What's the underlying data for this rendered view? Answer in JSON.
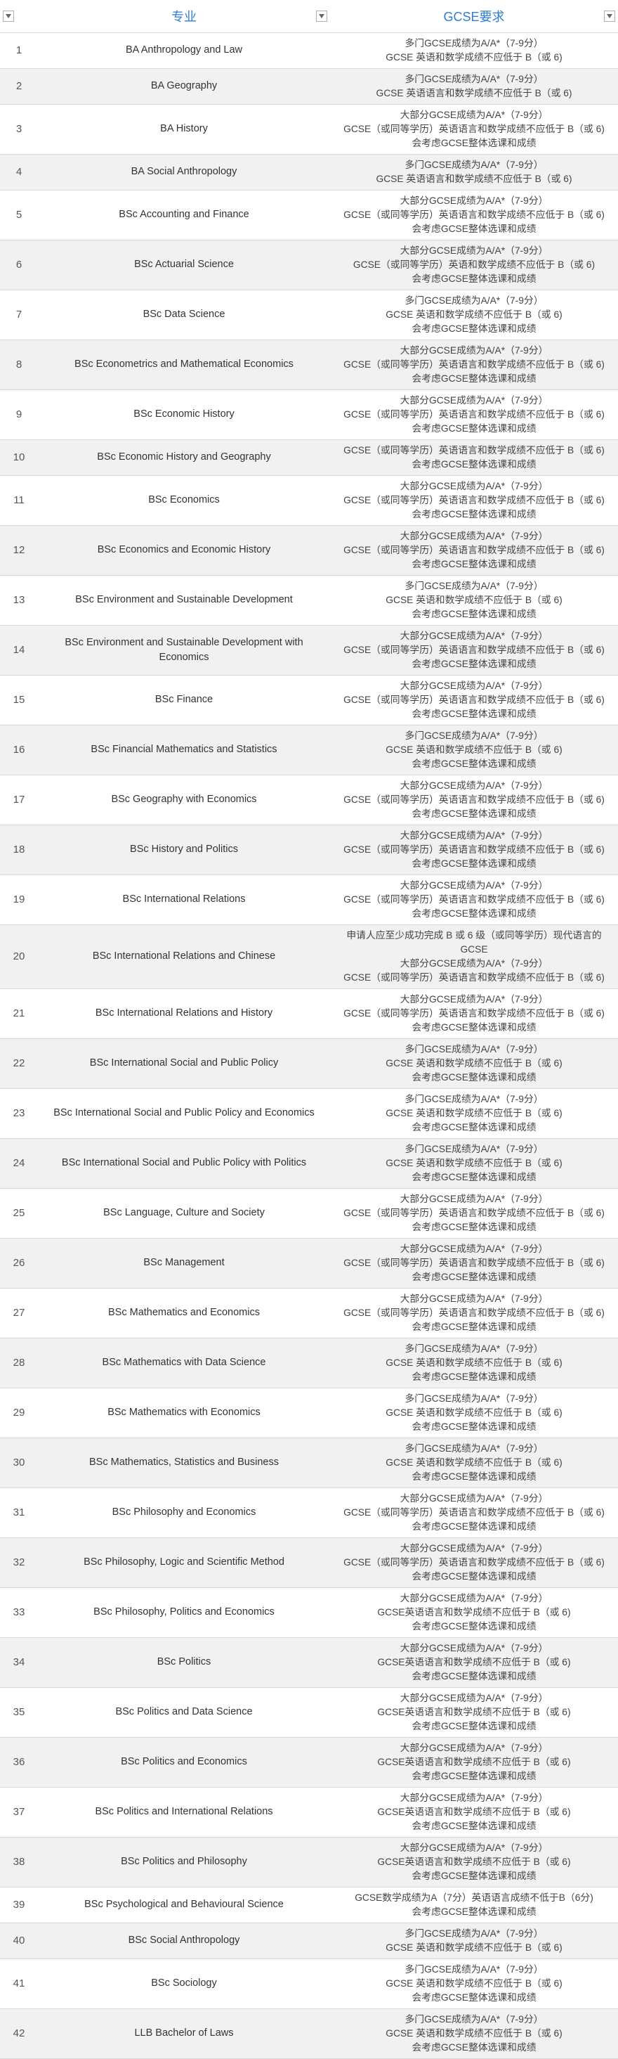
{
  "headers": {
    "num": "",
    "major": "专业",
    "req": "GCSE要求"
  },
  "colors": {
    "header_text": "#2d7dd2",
    "row_odd_bg": "#ffffff",
    "row_even_bg": "#f1f1f1",
    "text": "#444444",
    "border": "#d8d8d8"
  },
  "rows": [
    {
      "n": "1",
      "major": "BA Anthropology and Law",
      "req": [
        "多门GCSE成绩为A/A*（7-9分）",
        "GCSE 英语和数学成绩不应低于 B（或 6)"
      ]
    },
    {
      "n": "2",
      "major": "BA Geography",
      "req": [
        "多门GCSE成绩为A/A*（7-9分）",
        "GCSE 英语语言和数学成绩不应低于 B（或 6)"
      ]
    },
    {
      "n": "3",
      "major": "BA History",
      "req": [
        "大部分GCSE成绩为A/A*（7-9分）",
        "GCSE（或同等学历）英语语言和数学成绩不应低于 B（或 6)",
        "会考虑GCSE整体选课和成绩"
      ]
    },
    {
      "n": "4",
      "major": "BA Social Anthropology",
      "req": [
        "多门GCSE成绩为A/A*（7-9分）",
        "GCSE 英语语言和数学成绩不应低于 B（或 6)"
      ]
    },
    {
      "n": "5",
      "major": "BSc Accounting and Finance",
      "req": [
        "大部分GCSE成绩为A/A*（7-9分）",
        "GCSE（或同等学历）英语语言和数学成绩不应低于 B（或 6)",
        "会考虑GCSE整体选课和成绩"
      ]
    },
    {
      "n": "6",
      "major": "BSc Actuarial Science",
      "req": [
        "大部分GCSE成绩为A/A*（7-9分）",
        "GCSE（或同等学历）英语和数学成绩不应低于 B（或 6)",
        "会考虑GCSE整体选课和成绩"
      ]
    },
    {
      "n": "7",
      "major": "BSc Data Science",
      "req": [
        "多门GCSE成绩为A/A*（7-9分）",
        "GCSE 英语和数学成绩不应低于 B（或 6)",
        "会考虑GCSE整体选课和成绩"
      ]
    },
    {
      "n": "8",
      "major": "BSc Econometrics and Mathematical Economics",
      "req": [
        "大部分GCSE成绩为A/A*（7-9分）",
        "GCSE（或同等学历）英语语言和数学成绩不应低于 B（或 6)",
        "会考虑GCSE整体选课和成绩"
      ]
    },
    {
      "n": "9",
      "major": "BSc Economic History",
      "req": [
        "大部分GCSE成绩为A/A*（7-9分）",
        "GCSE（或同等学历）英语语言和数学成绩不应低于 B（或 6)",
        "会考虑GCSE整体选课和成绩"
      ]
    },
    {
      "n": "10",
      "major": "BSc Economic History and Geography",
      "req": [
        "GCSE（或同等学历）英语语言和数学成绩不应低于 B（或 6)",
        "会考虑GCSE整体选课和成绩"
      ]
    },
    {
      "n": "11",
      "major": "BSc Economics",
      "req": [
        "大部分GCSE成绩为A/A*（7-9分）",
        "GCSE（或同等学历）英语语言和数学成绩不应低于 B（或 6)",
        "会考虑GCSE整体选课和成绩"
      ]
    },
    {
      "n": "12",
      "major": "BSc Economics and Economic History",
      "req": [
        "大部分GCSE成绩为A/A*（7-9分）",
        "GCSE（或同等学历）英语语言和数学成绩不应低于 B（或 6)",
        "会考虑GCSE整体选课和成绩"
      ]
    },
    {
      "n": "13",
      "major": "BSc Environment and Sustainable Development",
      "req": [
        "多门GCSE成绩为A/A*（7-9分）",
        "GCSE 英语和数学成绩不应低于 B（或 6)",
        "会考虑GCSE整体选课和成绩"
      ]
    },
    {
      "n": "14",
      "major": "BSc Environment and Sustainable Development with Economics",
      "req": [
        "大部分GCSE成绩为A/A*（7-9分）",
        "GCSE（或同等学历）英语语言和数学成绩不应低于 B（或 6)",
        "会考虑GCSE整体选课和成绩"
      ]
    },
    {
      "n": "15",
      "major": "BSc Finance",
      "req": [
        "大部分GCSE成绩为A/A*（7-9分）",
        "GCSE（或同等学历）英语语言和数学成绩不应低于 B（或 6)",
        "会考虑GCSE整体选课和成绩"
      ]
    },
    {
      "n": "16",
      "major": "BSc Financial Mathematics and Statistics",
      "req": [
        "多门GCSE成绩为A/A*（7-9分）",
        "GCSE 英语和数学成绩不应低于 B（或 6)",
        "会考虑GCSE整体选课和成绩"
      ]
    },
    {
      "n": "17",
      "major": "BSc Geography with Economics",
      "req": [
        "大部分GCSE成绩为A/A*（7-9分）",
        "GCSE（或同等学历）英语语言和数学成绩不应低于 B（或 6)",
        "会考虑GCSE整体选课和成绩"
      ]
    },
    {
      "n": "18",
      "major": "BSc History and Politics",
      "req": [
        "大部分GCSE成绩为A/A*（7-9分）",
        "GCSE（或同等学历）英语语言和数学成绩不应低于 B（或 6)",
        "会考虑GCSE整体选课和成绩"
      ]
    },
    {
      "n": "19",
      "major": "BSc International Relations",
      "req": [
        "大部分GCSE成绩为A/A*（7-9分）",
        "GCSE（或同等学历）英语语言和数学成绩不应低于 B（或 6)",
        "会考虑GCSE整体选课和成绩"
      ]
    },
    {
      "n": "20",
      "major": "BSc International Relations and Chinese",
      "req": [
        "申请人应至少成功完成 B 或 6 级（或同等学历）现代语言的GCSE",
        "大部分GCSE成绩为A/A*（7-9分）",
        "GCSE（或同等学历）英语语言和数学成绩不应低于 B（或 6)"
      ]
    },
    {
      "n": "21",
      "major": "BSc International Relations and History",
      "req": [
        "大部分GCSE成绩为A/A*（7-9分）",
        "GCSE（或同等学历）英语语言和数学成绩不应低于 B（或 6)",
        "会考虑GCSE整体选课和成绩"
      ]
    },
    {
      "n": "22",
      "major": "BSc International Social and Public Policy",
      "req": [
        "多门GCSE成绩为A/A*（7-9分）",
        "GCSE 英语和数学成绩不应低于 B（或 6)",
        "会考虑GCSE整体选课和成绩"
      ]
    },
    {
      "n": "23",
      "major": "BSc International Social and Public Policy and Economics",
      "req": [
        "多门GCSE成绩为A/A*（7-9分）",
        "GCSE 英语和数学成绩不应低于 B（或 6)",
        "会考虑GCSE整体选课和成绩"
      ]
    },
    {
      "n": "24",
      "major": "BSc International Social and Public Policy with Politics",
      "req": [
        "多门GCSE成绩为A/A*（7-9分）",
        "GCSE 英语和数学成绩不应低于 B（或 6)",
        "会考虑GCSE整体选课和成绩"
      ]
    },
    {
      "n": "25",
      "major": "BSc Language, Culture and Society",
      "req": [
        "大部分GCSE成绩为A/A*（7-9分）",
        "GCSE（或同等学历）英语语言和数学成绩不应低于 B（或 6)",
        "会考虑GCSE整体选课和成绩"
      ]
    },
    {
      "n": "26",
      "major": "BSc Management",
      "req": [
        "大部分GCSE成绩为A/A*（7-9分）",
        "GCSE（或同等学历）英语语言和数学成绩不应低于 B（或 6)",
        "会考虑GCSE整体选课和成绩"
      ]
    },
    {
      "n": "27",
      "major": "BSc Mathematics and Economics",
      "req": [
        "大部分GCSE成绩为A/A*（7-9分）",
        "GCSE（或同等学历）英语语言和数学成绩不应低于 B（或 6)",
        "会考虑GCSE整体选课和成绩"
      ]
    },
    {
      "n": "28",
      "major": "BSc Mathematics with Data Science",
      "req": [
        "多门GCSE成绩为A/A*（7-9分）",
        "GCSE 英语和数学成绩不应低于 B（或 6)",
        "会考虑GCSE整体选课和成绩"
      ]
    },
    {
      "n": "29",
      "major": "BSc Mathematics with Economics",
      "req": [
        "多门GCSE成绩为A/A*（7-9分）",
        "GCSE 英语和数学成绩不应低于 B（或 6)",
        "会考虑GCSE整体选课和成绩"
      ]
    },
    {
      "n": "30",
      "major": "BSc Mathematics, Statistics and Business",
      "req": [
        "多门GCSE成绩为A/A*（7-9分）",
        "GCSE 英语和数学成绩不应低于 B（或 6)",
        "会考虑GCSE整体选课和成绩"
      ]
    },
    {
      "n": "31",
      "major": "BSc Philosophy and Economics",
      "req": [
        "大部分GCSE成绩为A/A*（7-9分）",
        "GCSE（或同等学历）英语语言和数学成绩不应低于 B（或 6)",
        "会考虑GCSE整体选课和成绩"
      ]
    },
    {
      "n": "32",
      "major": "BSc Philosophy, Logic and Scientific Method",
      "req": [
        "大部分GCSE成绩为A/A*（7-9分）",
        "GCSE（或同等学历）英语语言和数学成绩不应低于 B（或 6)",
        "会考虑GCSE整体选课和成绩"
      ]
    },
    {
      "n": "33",
      "major": "BSc Philosophy, Politics and Economics",
      "req": [
        "大部分GCSE成绩为A/A*（7-9分）",
        "GCSE英语语言和数学成绩不应低于 B（或 6)",
        "会考虑GCSE整体选课和成绩"
      ]
    },
    {
      "n": "34",
      "major": "BSc Politics",
      "req": [
        "大部分GCSE成绩为A/A*（7-9分）",
        "GCSE英语语言和数学成绩不应低于 B（或 6)",
        "会考虑GCSE整体选课和成绩"
      ]
    },
    {
      "n": "35",
      "major": "BSc Politics and Data Science",
      "req": [
        "大部分GCSE成绩为A/A*（7-9分）",
        "GCSE英语语言和数学成绩不应低于 B（或 6)",
        "会考虑GCSE整体选课和成绩"
      ]
    },
    {
      "n": "36",
      "major": "BSc Politics and Economics",
      "req": [
        "大部分GCSE成绩为A/A*（7-9分）",
        "GCSE英语语言和数学成绩不应低于 B（或 6)",
        "会考虑GCSE整体选课和成绩"
      ]
    },
    {
      "n": "37",
      "major": "BSc Politics and International Relations",
      "req": [
        "大部分GCSE成绩为A/A*（7-9分）",
        "GCSE英语语言和数学成绩不应低于 B（或 6)",
        "会考虑GCSE整体选课和成绩"
      ]
    },
    {
      "n": "38",
      "major": "BSc Politics and Philosophy",
      "req": [
        "大部分GCSE成绩为A/A*（7-9分）",
        "GCSE英语语言和数学成绩不应低于 B（或 6)",
        "会考虑GCSE整体选课和成绩"
      ]
    },
    {
      "n": "39",
      "major": "BSc Psychological and Behavioural Science",
      "req": [
        "GCSE数学成绩为A（7分）英语语言成绩不低于B（6分)",
        "会考虑GCSE整体选课和成绩"
      ]
    },
    {
      "n": "40",
      "major": "BSc Social Anthropology",
      "req": [
        "多门GCSE成绩为A/A*（7-9分）",
        "GCSE 英语和数学成绩不应低于 B（或 6)"
      ]
    },
    {
      "n": "41",
      "major": "BSc Sociology",
      "req": [
        "多门GCSE成绩为A/A*（7-9分）",
        "GCSE 英语和数学成绩不应低于 B（或 6)",
        "会考虑GCSE整体选课和成绩"
      ]
    },
    {
      "n": "42",
      "major": "LLB Bachelor of Laws",
      "req": [
        "多门GCSE成绩为A/A*（7-9分）",
        "GCSE 英语和数学成绩不应低于 B（或 6)",
        "会考虑GCSE整体选课和成绩"
      ]
    }
  ]
}
